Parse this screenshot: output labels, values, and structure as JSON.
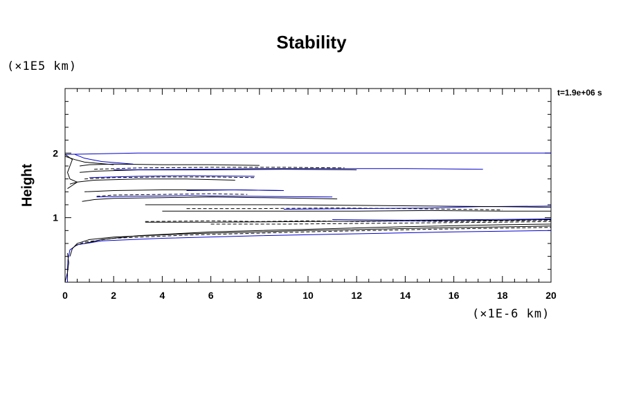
{
  "chart_data": {
    "type": "line",
    "title": "Stability",
    "ylabel": "Height",
    "xlabel": "",
    "x_unit_label": "(×1E-6 km)",
    "y_unit_label": "(×1E5 km)",
    "annotation": "t=1.9e+06 s",
    "xlim": [
      0,
      20
    ],
    "ylim": [
      0,
      3
    ],
    "x_ticks": [
      0,
      2,
      4,
      6,
      8,
      10,
      12,
      14,
      16,
      18,
      20
    ],
    "x_tick_labels": [
      "0",
      "2",
      "4",
      "6",
      "8",
      "10",
      "12",
      "14",
      "16",
      "18",
      "20"
    ],
    "y_ticks": [
      1,
      2
    ],
    "y_tick_labels": [
      "1",
      "2"
    ],
    "grid": false,
    "series": [
      {
        "style": "solid",
        "color": "#0000cc",
        "x": [
          0.1,
          0.1,
          0.12,
          0.2,
          0.5,
          1.5,
          4,
          8,
          12,
          16,
          20
        ],
        "y": [
          0,
          0.2,
          0.35,
          0.5,
          0.58,
          0.64,
          0.68,
          0.72,
          0.75,
          0.78,
          0.8
        ]
      },
      {
        "style": "solid",
        "color": "#000000",
        "x": [
          0.2,
          0.3,
          0.5,
          1,
          2,
          5,
          10,
          15,
          20
        ],
        "y": [
          0.4,
          0.52,
          0.6,
          0.66,
          0.7,
          0.75,
          0.8,
          0.84,
          0.87
        ]
      },
      {
        "style": "dashed",
        "color": "#000000",
        "x": [
          0.4,
          0.8,
          2,
          5,
          10,
          15,
          20
        ],
        "y": [
          0.56,
          0.62,
          0.68,
          0.73,
          0.78,
          0.82,
          0.85
        ]
      },
      {
        "style": "solid",
        "color": "#000000",
        "x": [
          0.8,
          1.5,
          3,
          6,
          10,
          14,
          18,
          20
        ],
        "y": [
          0.6,
          0.66,
          0.72,
          0.78,
          0.82,
          0.86,
          0.89,
          0.9
        ]
      },
      {
        "style": "dashed",
        "color": "#000000",
        "x": [
          3.3,
          6,
          8,
          10,
          12,
          14,
          16,
          18,
          20
        ],
        "y": [
          0.94,
          0.95,
          0.94,
          0.95,
          0.94,
          0.95,
          0.94,
          0.95,
          0.96
        ]
      },
      {
        "style": "solid",
        "color": "#000000",
        "x": [
          3.3,
          6,
          10,
          14,
          18,
          20
        ],
        "y": [
          0.93,
          0.93,
          0.94,
          0.95,
          0.96,
          0.97
        ]
      },
      {
        "style": "dashed",
        "color": "#000000",
        "x": [
          6,
          9,
          12,
          15,
          18,
          20
        ],
        "y": [
          0.9,
          0.9,
          0.91,
          0.92,
          0.93,
          0.94
        ]
      },
      {
        "style": "solid",
        "color": "#0000cc",
        "x": [
          11,
          14,
          17,
          20
        ],
        "y": [
          0.97,
          0.96,
          0.97,
          0.98
        ]
      },
      {
        "style": "solid",
        "color": "#000000",
        "x": [
          4,
          8,
          12,
          15,
          18,
          20
        ],
        "y": [
          1.1,
          1.1,
          1.1,
          1.11,
          1.1,
          1.1
        ]
      },
      {
        "style": "dashed",
        "color": "#000000",
        "x": [
          5,
          8,
          11,
          14,
          16,
          18
        ],
        "y": [
          1.14,
          1.14,
          1.15,
          1.14,
          1.13,
          1.12
        ]
      },
      {
        "style": "solid",
        "color": "#0000cc",
        "x": [
          9,
          12,
          15,
          17,
          20
        ],
        "y": [
          1.13,
          1.14,
          1.15,
          1.17,
          1.18
        ]
      },
      {
        "style": "solid",
        "color": "#000000",
        "x": [
          3.3,
          6,
          9,
          12,
          15,
          18,
          20
        ],
        "y": [
          1.2,
          1.2,
          1.2,
          1.19,
          1.18,
          1.17,
          1.16
        ]
      },
      {
        "style": "solid",
        "color": "#000000",
        "x": [
          0.7,
          1.2,
          2,
          4,
          6,
          8,
          10,
          11.2
        ],
        "y": [
          1.25,
          1.28,
          1.3,
          1.31,
          1.32,
          1.31,
          1.3,
          1.29
        ]
      },
      {
        "style": "dashed",
        "color": "#000000",
        "x": [
          1.3,
          2,
          4,
          6,
          7.5
        ],
        "y": [
          1.33,
          1.35,
          1.36,
          1.37,
          1.36
        ]
      },
      {
        "style": "solid",
        "color": "#0000cc",
        "x": [
          1.3,
          2.5,
          5,
          8,
          11
        ],
        "y": [
          1.32,
          1.33,
          1.34,
          1.33,
          1.32
        ]
      },
      {
        "style": "solid",
        "color": "#000000",
        "x": [
          0.8,
          2,
          4,
          7,
          9
        ],
        "y": [
          1.4,
          1.42,
          1.43,
          1.43,
          1.42
        ]
      },
      {
        "style": "solid",
        "color": "#0000cc",
        "x": [
          5,
          7,
          9
        ],
        "y": [
          1.42,
          1.43,
          1.42
        ]
      },
      {
        "style": "solid",
        "color": "#000000",
        "x": [
          0.2,
          0.5,
          1.2,
          3,
          5,
          7
        ],
        "y": [
          1.52,
          1.55,
          1.58,
          1.6,
          1.6,
          1.58
        ]
      },
      {
        "style": "dashed",
        "color": "#000000",
        "x": [
          0.8,
          2,
          4,
          6,
          7.8
        ],
        "y": [
          1.6,
          1.62,
          1.63,
          1.63,
          1.62
        ]
      },
      {
        "style": "solid",
        "color": "#0000cc",
        "x": [
          1,
          3,
          5,
          7.8
        ],
        "y": [
          1.62,
          1.64,
          1.65,
          1.64
        ]
      },
      {
        "style": "solid",
        "color": "#000000",
        "x": [
          0.6,
          1.2,
          3,
          6,
          9,
          12
        ],
        "y": [
          1.7,
          1.72,
          1.74,
          1.74,
          1.75,
          1.74
        ]
      },
      {
        "style": "dashed",
        "color": "#000000",
        "x": [
          1.2,
          3,
          6,
          9,
          11.5
        ],
        "y": [
          1.75,
          1.77,
          1.78,
          1.78,
          1.77
        ]
      },
      {
        "style": "solid",
        "color": "#0000cc",
        "x": [
          2,
          5,
          8,
          11,
          14,
          17.2
        ],
        "y": [
          1.74,
          1.75,
          1.76,
          1.76,
          1.76,
          1.75
        ]
      },
      {
        "style": "solid",
        "color": "#000000",
        "x": [
          0.6,
          1,
          2,
          4,
          6,
          8
        ],
        "y": [
          1.8,
          1.82,
          1.83,
          1.82,
          1.82,
          1.81
        ]
      },
      {
        "style": "solid",
        "color": "#000000",
        "x": [
          0,
          0.4,
          0.8,
          1.4,
          2
        ],
        "y": [
          1.95,
          1.9,
          1.86,
          1.84,
          1.82
        ]
      },
      {
        "style": "solid",
        "color": "#0000cc",
        "x": [
          0.4,
          0.8,
          1.5,
          2.8
        ],
        "y": [
          1.98,
          1.92,
          1.87,
          1.83
        ]
      },
      {
        "style": "solid",
        "color": "#0000cc",
        "x": [
          0,
          1.5,
          3,
          10,
          20
        ],
        "y": [
          1.98,
          1.99,
          2.0,
          2.0,
          2.0
        ]
      },
      {
        "style": "solid",
        "color": "#000000",
        "x": [
          0,
          0.3,
          0.2,
          0.1,
          0.2,
          0.5,
          0.3,
          0.1
        ],
        "y": [
          1.98,
          1.9,
          1.8,
          1.7,
          1.6,
          1.55,
          1.5,
          1.45
        ]
      },
      {
        "style": "solid",
        "color": "#000000",
        "x": [
          0,
          0.1,
          0.15,
          0.1
        ],
        "y": [
          0,
          0.15,
          0.3,
          0.45
        ]
      }
    ]
  }
}
